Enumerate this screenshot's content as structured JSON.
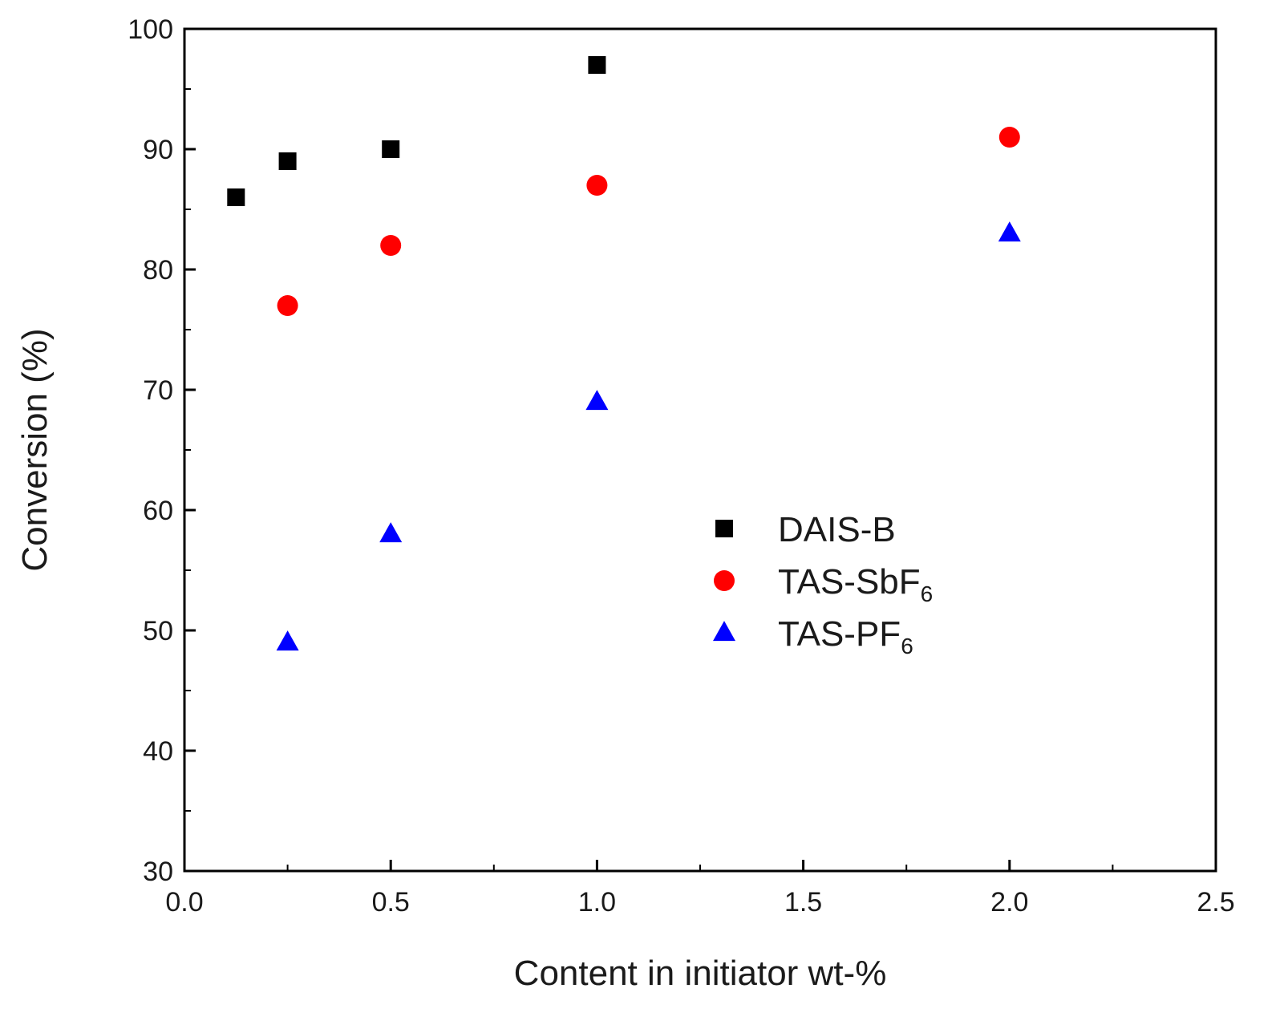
{
  "chart_data": {
    "type": "scatter",
    "title": "",
    "xlabel": "Content in initiator wt-%",
    "ylabel": "Conversion (%)",
    "xlim": [
      0.0,
      2.5
    ],
    "ylim": [
      30,
      100
    ],
    "x_ticks": [
      0.0,
      0.5,
      1.0,
      1.5,
      2.0,
      2.5
    ],
    "x_tick_labels": [
      "0.0",
      "0.5",
      "1.0",
      "1.5",
      "2.0",
      "2.5"
    ],
    "y_ticks": [
      30,
      40,
      50,
      60,
      70,
      80,
      90,
      100
    ],
    "y_tick_labels": [
      "30",
      "40",
      "50",
      "60",
      "70",
      "80",
      "90",
      "100"
    ],
    "grid": false,
    "legend_position": "center-right",
    "series": [
      {
        "name": "DAIS-B",
        "label_main": "DAIS-B",
        "label_sub": "",
        "marker": "square",
        "color": "#000000",
        "x": [
          0.125,
          0.25,
          0.5,
          1.0
        ],
        "y": [
          86,
          89,
          90,
          97
        ]
      },
      {
        "name": "TAS-SbF6",
        "label_main": "TAS-SbF",
        "label_sub": "6",
        "marker": "circle",
        "color": "#ff0000",
        "x": [
          0.25,
          0.5,
          1.0,
          2.0
        ],
        "y": [
          77,
          82,
          87,
          91
        ]
      },
      {
        "name": "TAS-PF6",
        "label_main": "TAS-PF",
        "label_sub": "6",
        "marker": "triangle",
        "color": "#0000ff",
        "x": [
          0.25,
          0.5,
          1.0,
          2.0
        ],
        "y": [
          49,
          58,
          69,
          83
        ]
      }
    ]
  }
}
